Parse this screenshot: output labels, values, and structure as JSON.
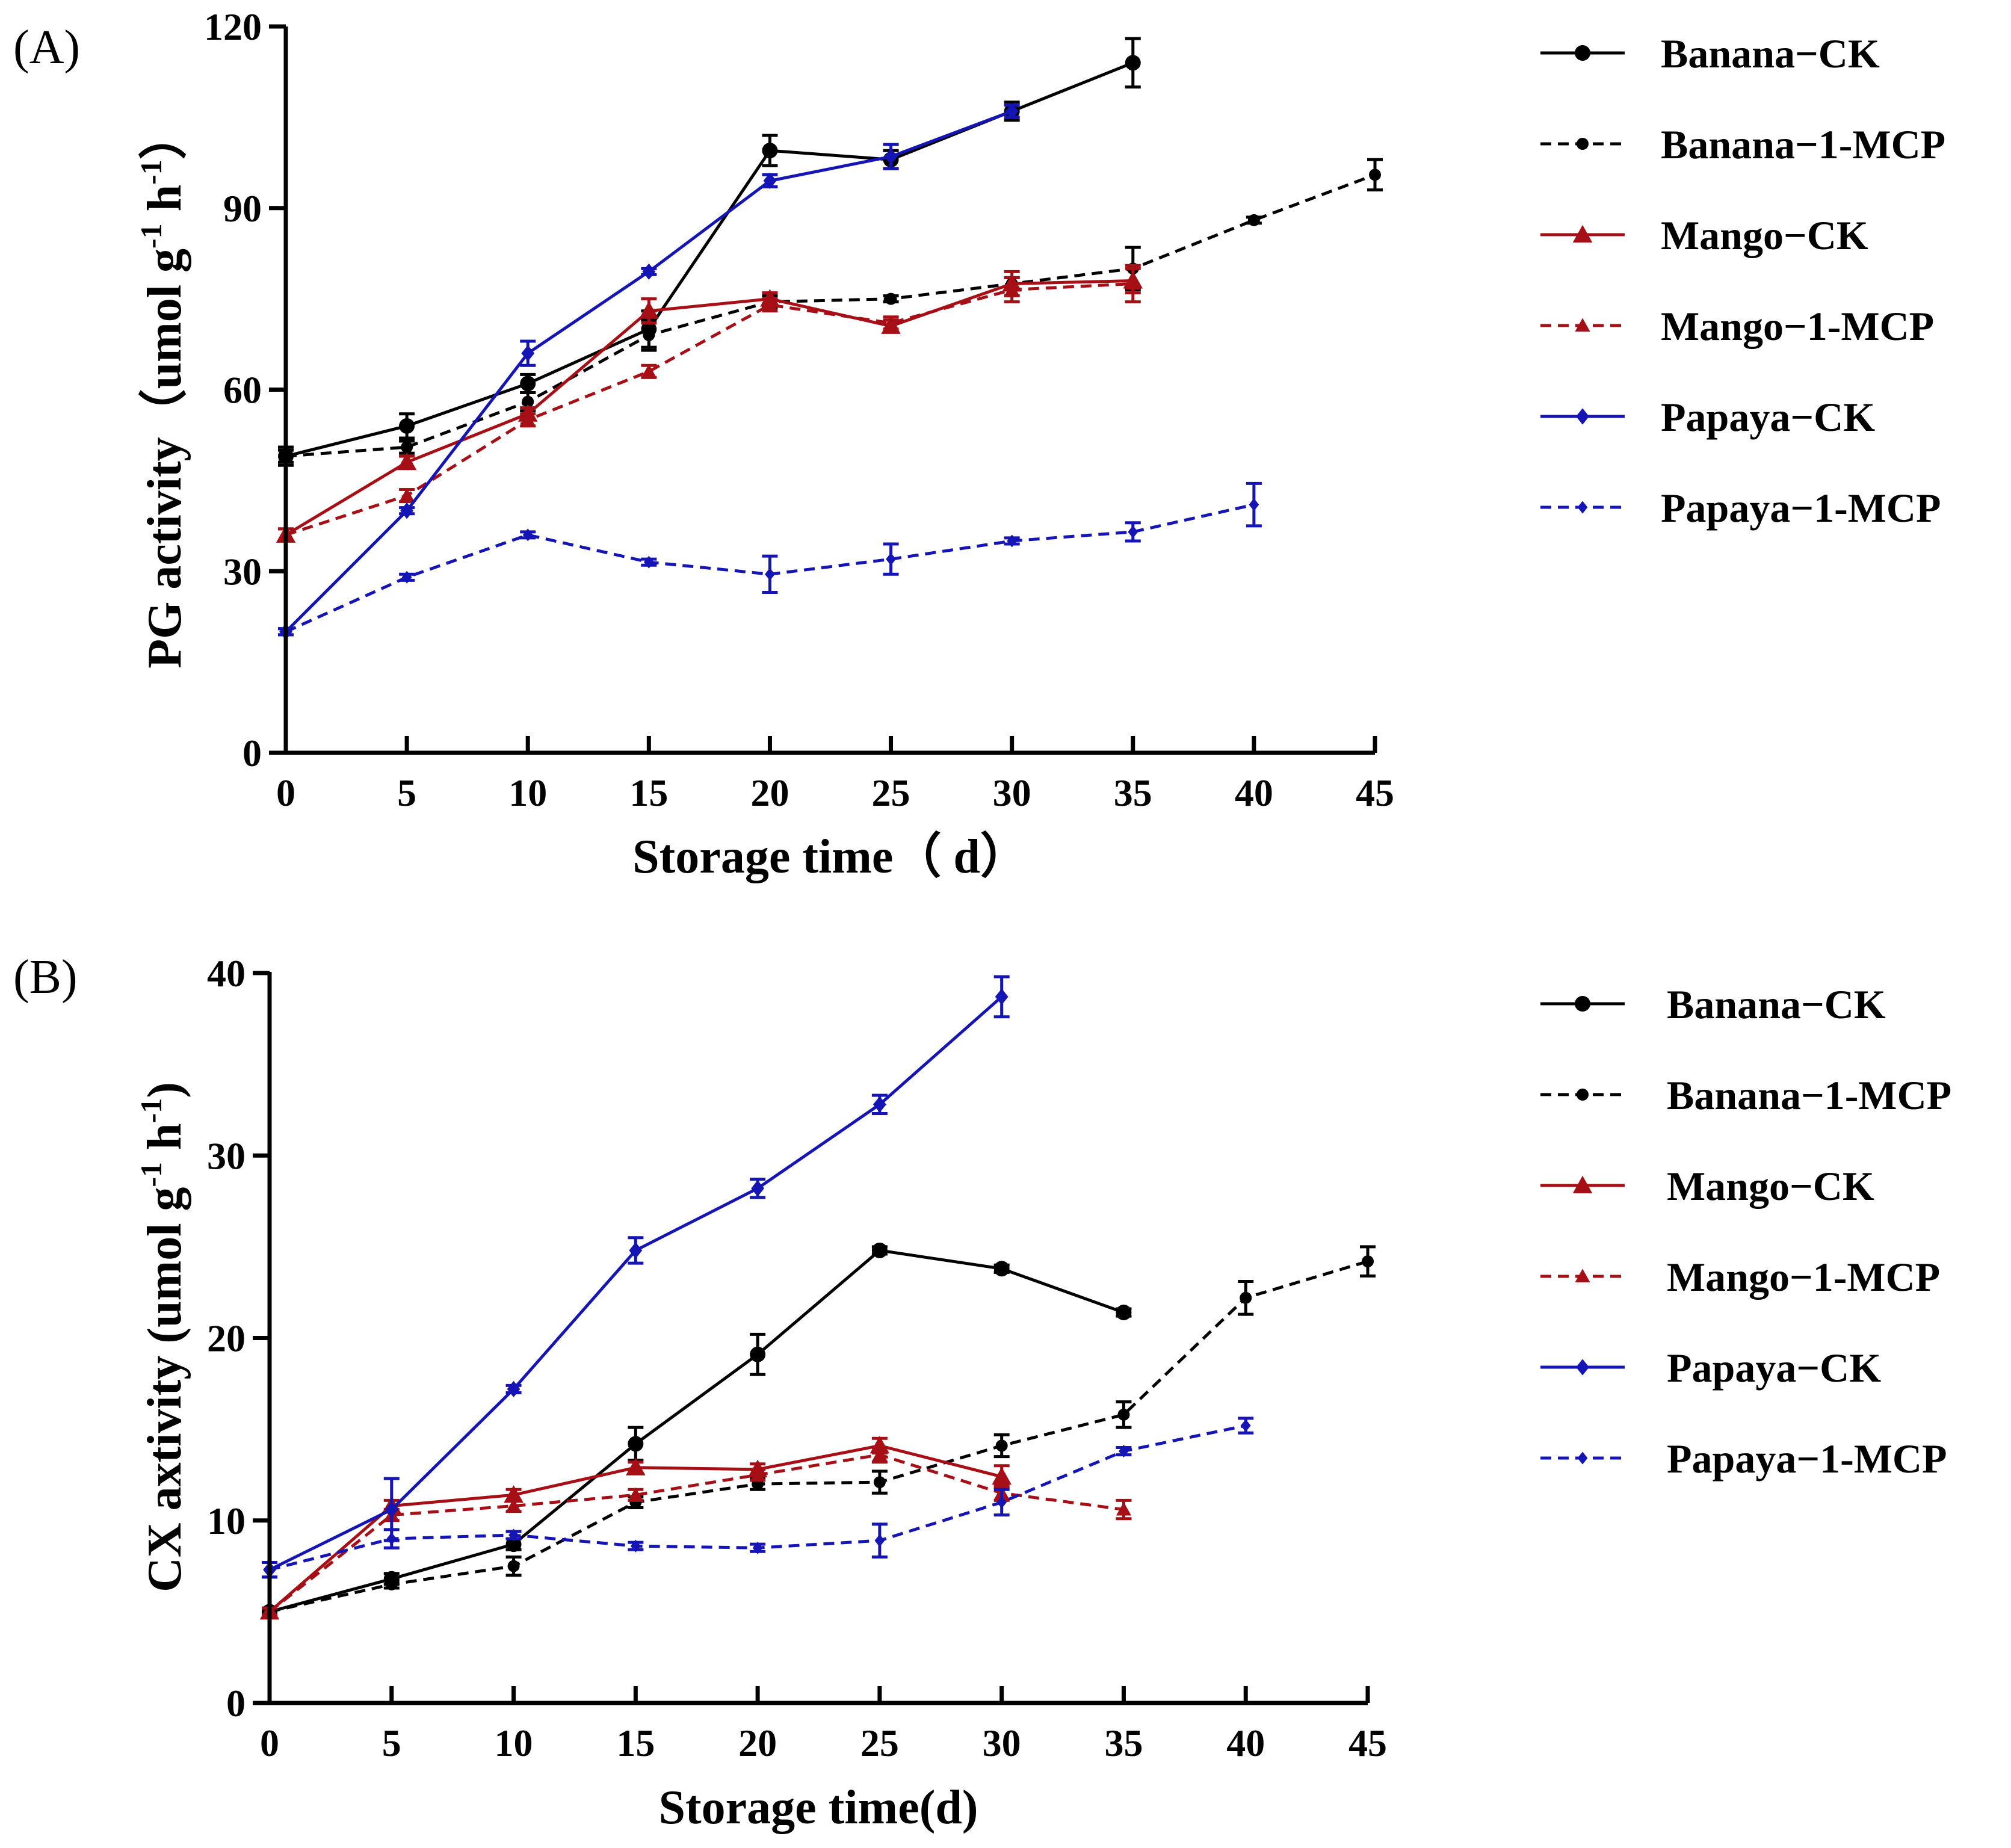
{
  "series_styles": {
    "Banana−CK": {
      "color": "#000000",
      "dash": false,
      "marker": "circle"
    },
    "Banana−1-MCP": {
      "color": "#000000",
      "dash": true,
      "marker": "circle"
    },
    "Mango−CK": {
      "color": "#a50f15",
      "dash": false,
      "marker": "triangle"
    },
    "Mango−1-MCP": {
      "color": "#a50f15",
      "dash": true,
      "marker": "triangle"
    },
    "Papaya−CK": {
      "color": "#1515b5",
      "dash": false,
      "marker": "diamond"
    },
    "Papaya−1-MCP": {
      "color": "#1515b5",
      "dash": true,
      "marker": "diamond"
    }
  },
  "chart_data": [
    {
      "type": "line",
      "panel_label": "(A)",
      "xlabel": "Storage time（ d）",
      "ylabel_main": "PG activity（umol g",
      "ylabel_sup1": "-1",
      "ylabel_mid": " h",
      "ylabel_sup2": "-1",
      "ylabel_end": "）",
      "xlim": [
        0,
        45
      ],
      "ylim": [
        0,
        120
      ],
      "x_ticks": [
        "0",
        "5",
        "10",
        "15",
        "20",
        "25",
        "30",
        "35",
        "40",
        "45"
      ],
      "y_ticks": [
        "0",
        "30",
        "60",
        "90",
        "120"
      ],
      "legend_position": "right",
      "series": [
        {
          "name": "Banana−CK",
          "x": [
            0,
            5,
            10,
            15,
            20,
            25,
            30,
            35
          ],
          "y": [
            49,
            54,
            61,
            70,
            99.5,
            98,
            106,
            114
          ],
          "err": [
            1.5,
            2,
            1.5,
            3,
            2.5,
            1.5,
            1.5,
            4
          ]
        },
        {
          "name": "Banana−1-MCP",
          "x": [
            0,
            5,
            10,
            15,
            20,
            25,
            30,
            35,
            40,
            45
          ],
          "y": [
            49,
            50.5,
            58,
            69,
            74.5,
            75,
            77.5,
            80,
            88,
            95.5
          ],
          "err": [
            1,
            1,
            1.5,
            2.5,
            1,
            0.5,
            1,
            3.5,
            0.5,
            2.5
          ]
        },
        {
          "name": "Mango−CK",
          "x": [
            0,
            5,
            10,
            15,
            20,
            25,
            30,
            35
          ],
          "y": [
            36,
            48,
            56,
            73,
            75,
            70.5,
            77.5,
            78
          ],
          "err": [
            1,
            1,
            1,
            2,
            1,
            1,
            2,
            2
          ]
        },
        {
          "name": "Mango−1-MCP",
          "x": [
            0,
            5,
            10,
            15,
            20,
            25,
            30,
            35
          ],
          "y": [
            36,
            42.5,
            55,
            63,
            74,
            71,
            76.5,
            77.5
          ],
          "err": [
            1,
            1,
            1,
            1,
            1,
            1,
            2,
            3
          ]
        },
        {
          "name": "Papaya−CK",
          "x": [
            0,
            5,
            10,
            15,
            20,
            25,
            30
          ],
          "y": [
            20,
            40,
            66,
            79.5,
            94.5,
            98.5,
            106
          ],
          "err": [
            0.5,
            0.5,
            2,
            0.5,
            1,
            2,
            1
          ]
        },
        {
          "name": "Papaya−1-MCP",
          "x": [
            0,
            5,
            10,
            15,
            20,
            25,
            30,
            35,
            40
          ],
          "y": [
            20,
            29,
            36,
            31.5,
            29.5,
            32,
            35,
            36.5,
            41
          ],
          "err": [
            0.5,
            0.5,
            0.5,
            0.5,
            3,
            2.5,
            0.5,
            1.5,
            3.5
          ]
        }
      ]
    },
    {
      "type": "line",
      "panel_label": "(B)",
      "xlabel": "Storage time(d)",
      "ylabel_main": "CX axtivity (umol g",
      "ylabel_sup1": "-1",
      "ylabel_mid": " h",
      "ylabel_sup2": "-1",
      "ylabel_end": ")",
      "xlim": [
        0,
        45
      ],
      "ylim": [
        0,
        40
      ],
      "x_ticks": [
        "0",
        "5",
        "10",
        "15",
        "20",
        "25",
        "30",
        "35",
        "40",
        "45"
      ],
      "y_ticks": [
        "0",
        "10",
        "20",
        "30",
        "40"
      ],
      "legend_position": "right",
      "series": [
        {
          "name": "Banana−CK",
          "x": [
            0,
            5,
            10,
            15,
            20,
            25,
            30,
            35
          ],
          "y": [
            5,
            6.8,
            8.7,
            14.2,
            19.1,
            24.8,
            23.8,
            21.4
          ],
          "err": [
            0.2,
            0.3,
            0.3,
            0.9,
            1.1,
            0.2,
            0.2,
            0.2
          ]
        },
        {
          "name": "Banana−1-MCP",
          "x": [
            0,
            5,
            10,
            15,
            20,
            25,
            30,
            35,
            40,
            45
          ],
          "y": [
            5,
            6.5,
            7.5,
            11,
            12,
            12.1,
            14.1,
            15.8,
            22.2,
            24.2
          ],
          "err": [
            0.2,
            0.2,
            0.5,
            0.3,
            0.3,
            0.6,
            0.6,
            0.7,
            0.9,
            0.8
          ]
        },
        {
          "name": "Mango−CK",
          "x": [
            0,
            5,
            10,
            15,
            20,
            25,
            30
          ],
          "y": [
            5,
            10.8,
            11.4,
            12.9,
            12.8,
            14.1,
            12.4
          ],
          "err": [
            0.2,
            0.3,
            0.3,
            0.3,
            0.3,
            0.4,
            0.6
          ]
        },
        {
          "name": "Mango−1-MCP",
          "x": [
            0,
            5,
            10,
            15,
            20,
            25,
            30,
            35
          ],
          "y": [
            5,
            10.3,
            10.8,
            11.4,
            12.5,
            13.6,
            11.5,
            10.6
          ],
          "err": [
            0.2,
            0.3,
            0.3,
            0.3,
            0.3,
            0.4,
            0.4,
            0.5
          ]
        },
        {
          "name": "Papaya−CK",
          "x": [
            0,
            5,
            10,
            15,
            20,
            25,
            30
          ],
          "y": [
            7.3,
            10.6,
            17.2,
            24.8,
            28.2,
            32.8,
            38.7
          ],
          "err": [
            0.4,
            1.7,
            0.2,
            0.7,
            0.5,
            0.5,
            1.1
          ]
        },
        {
          "name": "Papaya−1-MCP",
          "x": [
            0,
            5,
            10,
            15,
            20,
            25,
            30,
            35,
            40
          ],
          "y": [
            7.3,
            9,
            9.2,
            8.6,
            8.5,
            8.9,
            11,
            13.8,
            15.2
          ],
          "err": [
            0.4,
            0.5,
            0.2,
            0.2,
            0.2,
            0.9,
            0.7,
            0.2,
            0.4
          ]
        }
      ]
    }
  ]
}
